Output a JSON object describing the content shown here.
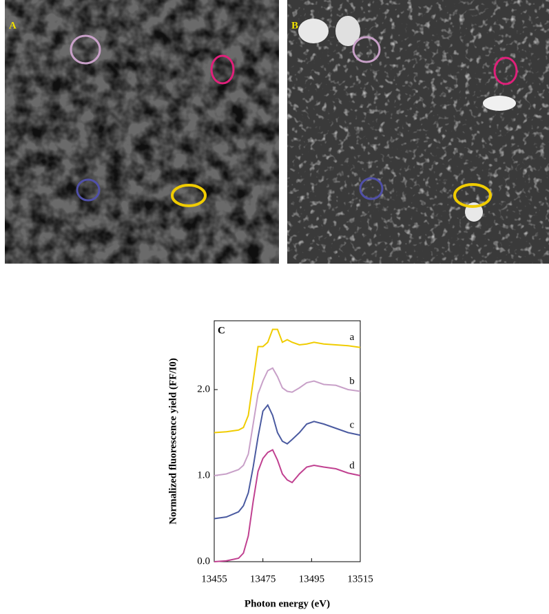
{
  "panels": [
    {
      "label": "A"
    },
    {
      "label": "B"
    }
  ],
  "chart_data": {
    "type": "line",
    "title": "C",
    "x_label": "Photon energy (eV)",
    "y_label": "Normalized fluorescence yield (FF/I0)",
    "x": [
      13455,
      13460,
      13465,
      13467,
      13469,
      13471,
      13473,
      13475,
      13477,
      13479,
      13481,
      13483,
      13485,
      13487,
      13490,
      13493,
      13496,
      13500,
      13505,
      13510,
      13515
    ],
    "series": [
      {
        "name": "a",
        "color": "#f0cc00",
        "values": [
          1.5,
          1.51,
          1.53,
          1.56,
          1.7,
          2.1,
          2.5,
          2.5,
          2.55,
          2.7,
          2.7,
          2.55,
          2.58,
          2.55,
          2.52,
          2.53,
          2.55,
          2.53,
          2.52,
          2.51,
          2.49
        ]
      },
      {
        "name": "b",
        "color": "#c8a0c8",
        "values": [
          1.0,
          1.02,
          1.07,
          1.12,
          1.25,
          1.6,
          1.95,
          2.1,
          2.22,
          2.25,
          2.15,
          2.02,
          1.98,
          1.97,
          2.02,
          2.08,
          2.1,
          2.06,
          2.05,
          2.0,
          1.98
        ]
      },
      {
        "name": "c",
        "color": "#4a5aa0",
        "values": [
          0.5,
          0.52,
          0.58,
          0.65,
          0.8,
          1.1,
          1.45,
          1.75,
          1.82,
          1.7,
          1.5,
          1.4,
          1.37,
          1.42,
          1.5,
          1.6,
          1.63,
          1.6,
          1.55,
          1.5,
          1.47
        ]
      },
      {
        "name": "d",
        "color": "#c04090",
        "values": [
          0.0,
          0.01,
          0.04,
          0.1,
          0.3,
          0.7,
          1.05,
          1.2,
          1.27,
          1.3,
          1.18,
          1.02,
          0.95,
          0.92,
          1.02,
          1.1,
          1.12,
          1.1,
          1.08,
          1.03,
          1.0
        ]
      }
    ],
    "xlim": [
      13455,
      13515
    ],
    "xticks": [
      13455,
      13475,
      13495,
      13515
    ],
    "ylim": [
      0,
      2.8
    ],
    "yticks": [
      {
        "value": 0,
        "label": "0.0"
      },
      {
        "value": 1,
        "label": "1.0"
      },
      {
        "value": 2,
        "label": "2.0"
      }
    ]
  }
}
